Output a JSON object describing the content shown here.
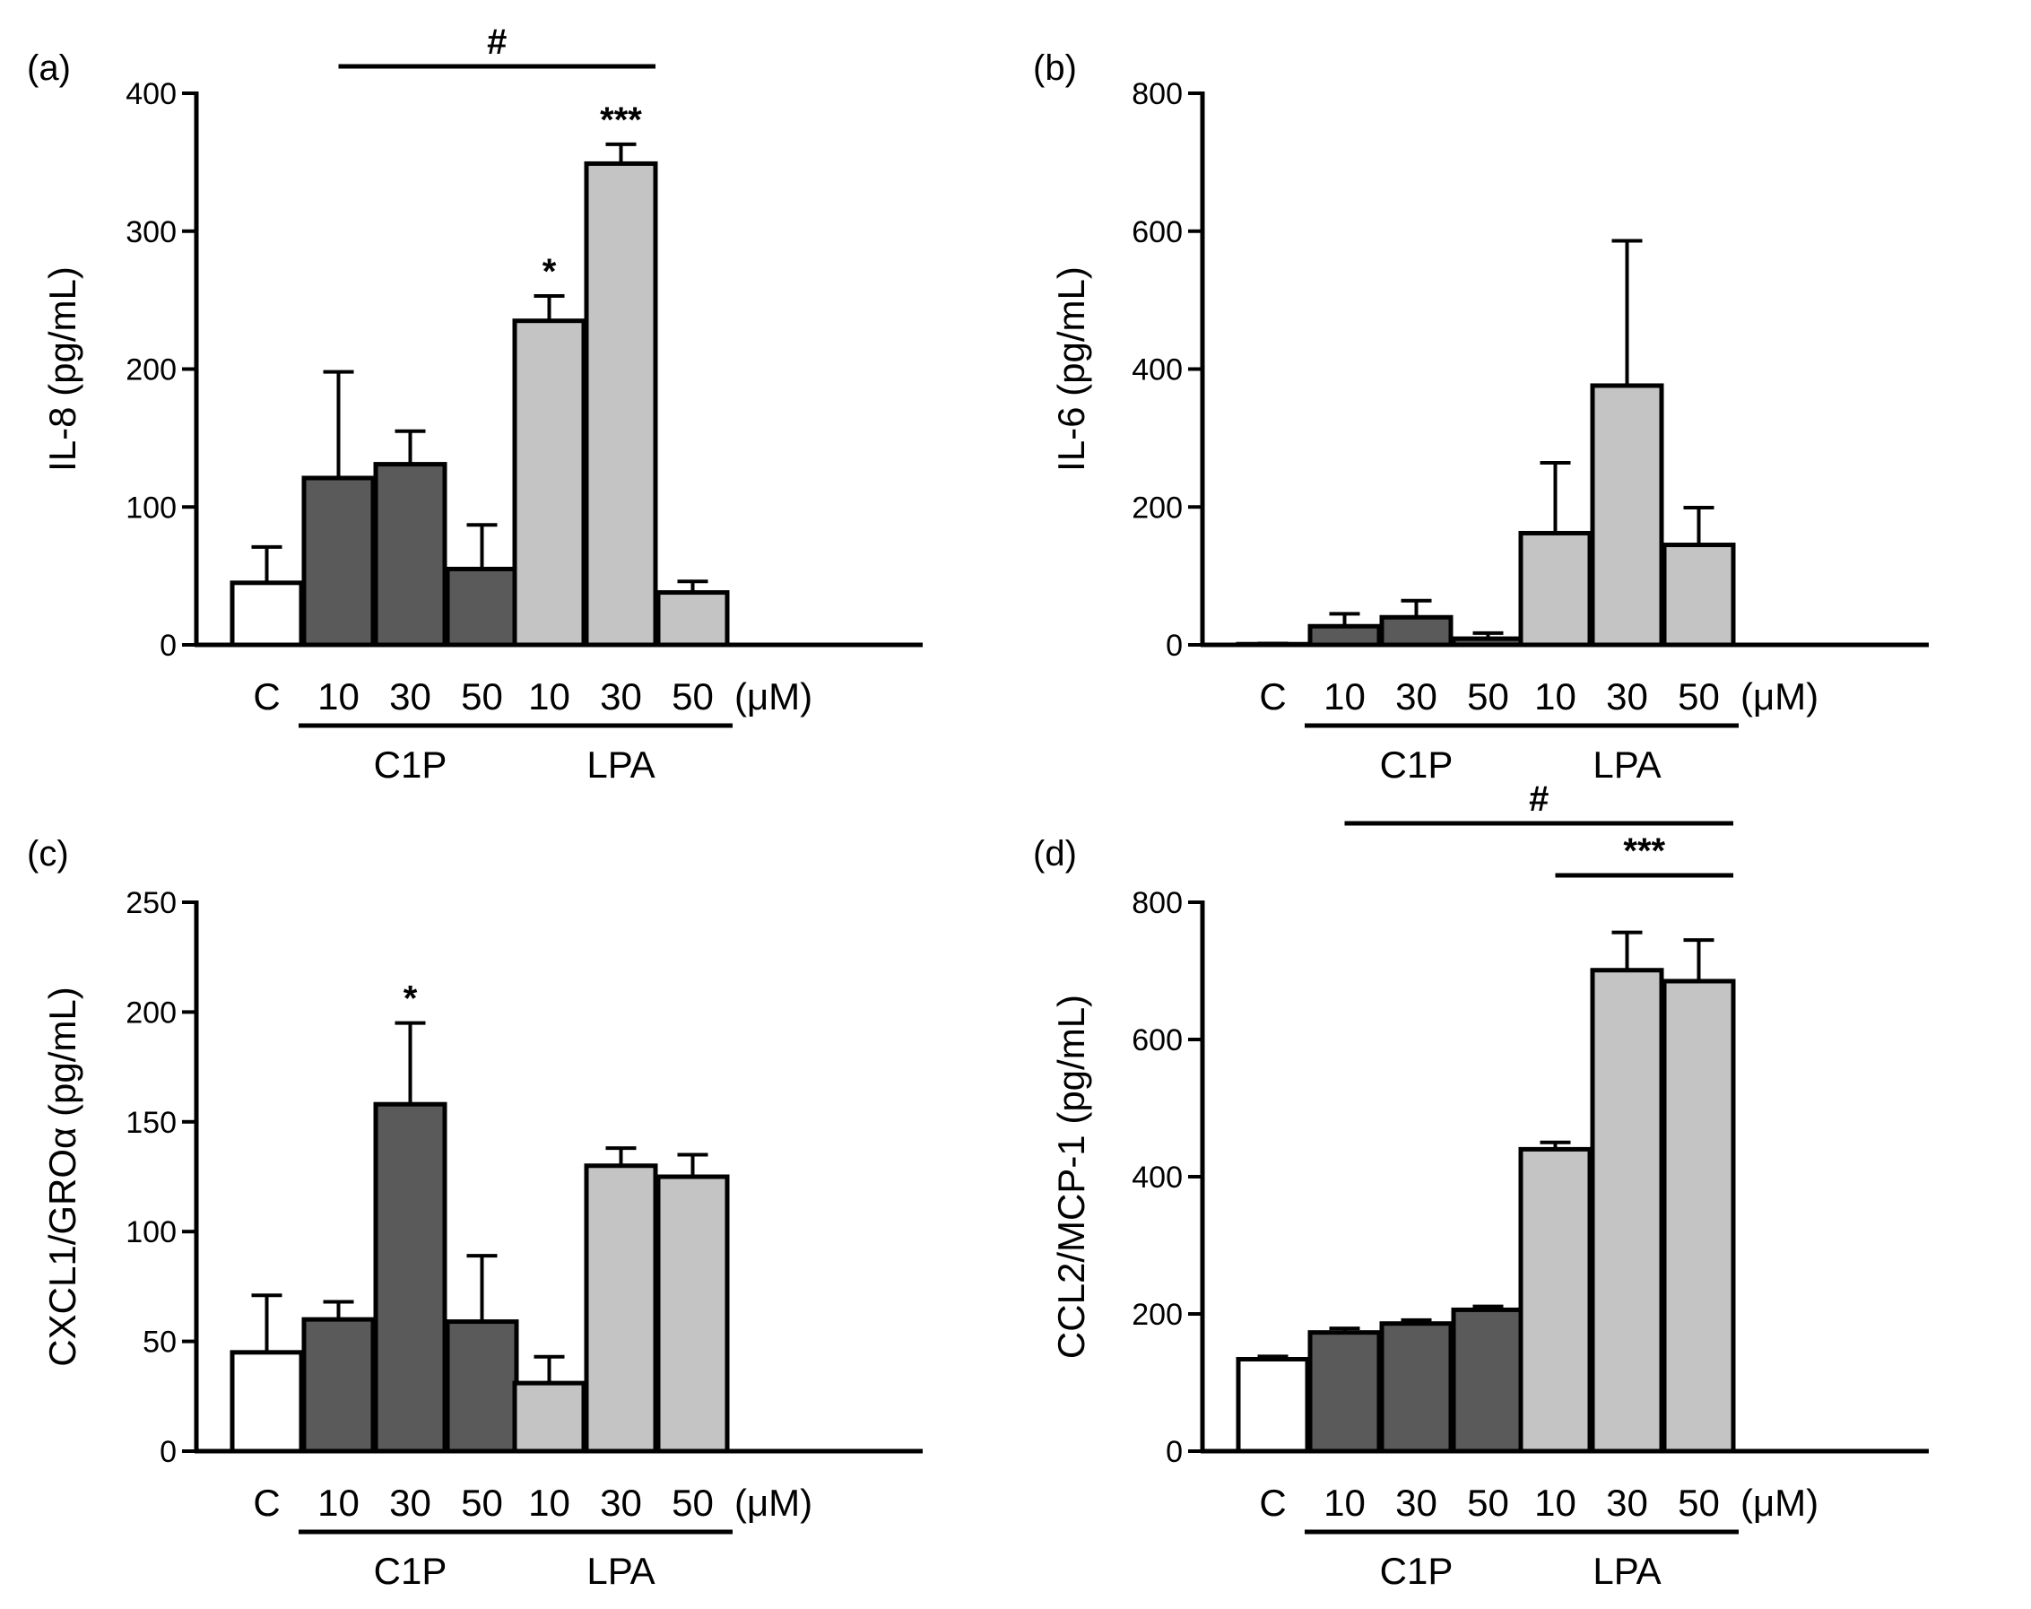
{
  "colors": {
    "control": "#ffffff",
    "c1p": "#5a5a5a",
    "lpa": "#c4c4c4",
    "stroke": "#000000"
  },
  "chart_data": [
    {
      "panel": "(a)",
      "type": "bar",
      "ylabel": "IL-8 (pg/mL)",
      "ylim": [
        0,
        400
      ],
      "yticks": [
        0,
        100,
        200,
        300,
        400
      ],
      "categories": [
        "C",
        "10",
        "30",
        "50",
        "10",
        "30",
        "50"
      ],
      "groups": [
        "control",
        "c1p",
        "c1p",
        "c1p",
        "lpa",
        "lpa",
        "lpa"
      ],
      "values": [
        45,
        121,
        131,
        55,
        235,
        349,
        38
      ],
      "errors": [
        26,
        77,
        24,
        32,
        18,
        14,
        8
      ],
      "stars": [
        "",
        "",
        "",
        "",
        "*",
        "***",
        ""
      ],
      "unit": "(μM)",
      "group_labels": {
        "c1p": "C1P",
        "lpa": "LPA"
      },
      "brackets": [
        {
          "label": "#",
          "from": 1,
          "to": 5,
          "level": 1
        }
      ]
    },
    {
      "panel": "(b)",
      "type": "bar",
      "ylabel": "IL-6 (pg/mL)",
      "ylim": [
        0,
        800
      ],
      "yticks": [
        0,
        200,
        400,
        600,
        800
      ],
      "categories": [
        "C",
        "10",
        "30",
        "50",
        "10",
        "30",
        "50"
      ],
      "groups": [
        "control",
        "c1p",
        "c1p",
        "c1p",
        "lpa",
        "lpa",
        "lpa"
      ],
      "values": [
        1,
        27,
        40,
        9,
        162,
        376,
        145
      ],
      "errors": [
        1,
        18,
        24,
        8,
        102,
        210,
        54
      ],
      "stars": [
        "",
        "",
        "",
        "",
        "",
        "",
        ""
      ],
      "unit": "(μM)",
      "group_labels": {
        "c1p": "C1P",
        "lpa": "LPA"
      },
      "brackets": []
    },
    {
      "panel": "(c)",
      "type": "bar",
      "ylabel": "CXCL1/GROα (pg/mL)",
      "ylim": [
        0,
        250
      ],
      "yticks": [
        0,
        50,
        100,
        150,
        200,
        250
      ],
      "categories": [
        "C",
        "10",
        "30",
        "50",
        "10",
        "30",
        "50"
      ],
      "groups": [
        "control",
        "c1p",
        "c1p",
        "c1p",
        "lpa",
        "lpa",
        "lpa"
      ],
      "values": [
        45,
        60,
        158,
        59,
        31,
        130,
        125
      ],
      "errors": [
        26,
        8,
        37,
        30,
        12,
        8,
        10
      ],
      "stars": [
        "",
        "",
        "*",
        "",
        "",
        "",
        ""
      ],
      "unit": "(μM)",
      "group_labels": {
        "c1p": "C1P",
        "lpa": "LPA"
      },
      "brackets": []
    },
    {
      "panel": "(d)",
      "type": "bar",
      "ylabel": "CCL2/MCP-1 (pg/mL)",
      "ylim": [
        0,
        800
      ],
      "yticks": [
        0,
        200,
        400,
        600,
        800
      ],
      "categories": [
        "C",
        "10",
        "30",
        "50",
        "10",
        "30",
        "50"
      ],
      "groups": [
        "control",
        "c1p",
        "c1p",
        "c1p",
        "lpa",
        "lpa",
        "lpa"
      ],
      "values": [
        134,
        173,
        186,
        206,
        440,
        701,
        685
      ],
      "errors": [
        4,
        6,
        5,
        5,
        10,
        55,
        60
      ],
      "stars": [
        "",
        "",
        "",
        "",
        "",
        "",
        ""
      ],
      "unit": "(μM)",
      "group_labels": {
        "c1p": "C1P",
        "lpa": "LPA"
      },
      "brackets": [
        {
          "label": "#",
          "from": 1,
          "to": 6,
          "level": 2
        },
        {
          "label": "***",
          "from": 4,
          "to": 6,
          "level": 1
        }
      ]
    }
  ]
}
